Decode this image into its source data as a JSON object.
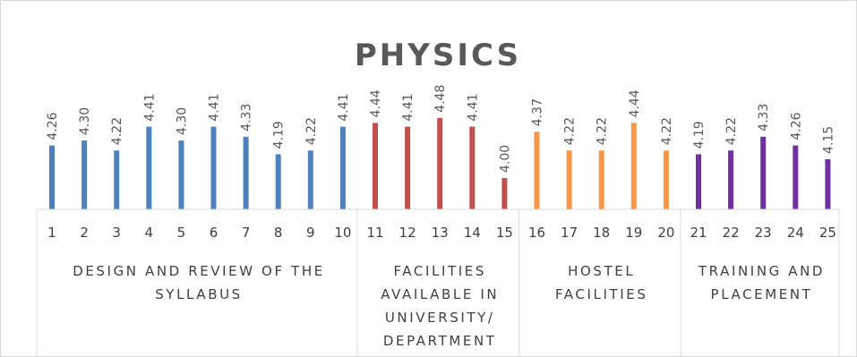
{
  "chart_data": {
    "type": "bar",
    "title": "PHYSICS",
    "categories": [
      "1",
      "2",
      "3",
      "4",
      "5",
      "6",
      "7",
      "8",
      "9",
      "10",
      "11",
      "12",
      "13",
      "14",
      "15",
      "16",
      "17",
      "18",
      "19",
      "20",
      "21",
      "22",
      "23",
      "24",
      "25"
    ],
    "values": [
      4.26,
      4.3,
      4.22,
      4.41,
      4.3,
      4.41,
      4.33,
      4.19,
      4.22,
      4.41,
      4.44,
      4.41,
      4.48,
      4.41,
      4.0,
      4.37,
      4.22,
      4.22,
      4.44,
      4.22,
      4.19,
      4.22,
      4.33,
      4.26,
      4.15
    ],
    "value_labels": [
      "4.26",
      "4.30",
      "4.22",
      "4.41",
      "4.30",
      "4.41",
      "4.33",
      "4.19",
      "4.22",
      "4.41",
      "4.44",
      "4.41",
      "4.48",
      "4.41",
      "4.00",
      "4.37",
      "4.22",
      "4.22",
      "4.44",
      "4.22",
      "4.19",
      "4.22",
      "4.33",
      "4.26",
      "4.15"
    ],
    "groups": [
      {
        "label_lines": [
          "DESIGN AND REVIEW OF THE",
          "SYLLABUS"
        ],
        "start": 0,
        "end": 9,
        "color": "#4f81bd"
      },
      {
        "label_lines": [
          "FACILITIES",
          "AVAILABLE IN",
          "UNIVERSITY/",
          "DEPARTMENT"
        ],
        "start": 10,
        "end": 14,
        "color": "#c0504d"
      },
      {
        "label_lines": [
          "HOSTEL",
          "FACILITIES"
        ],
        "start": 15,
        "end": 19,
        "color": "#f79646"
      },
      {
        "label_lines": [
          "TRAINING AND",
          "PLACEMENT"
        ],
        "start": 20,
        "end": 24,
        "color": "#7030a0"
      }
    ],
    "xlabel": "",
    "ylabel": "",
    "ylim": [
      3.75,
      4.5
    ],
    "grid": false,
    "legend": "none"
  }
}
